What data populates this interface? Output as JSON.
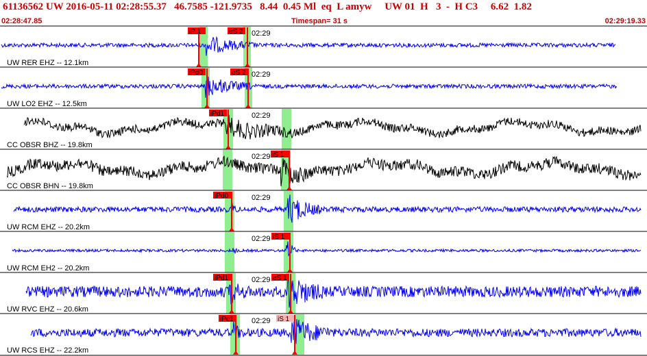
{
  "header": {
    "event_line": "61136562 UW 2016-05-11 02:28:55.37   46.7585 -121.9735   8.44  0.45 Ml  eq  L amyw     UW 01  H   3  -  H C3     6.62  1.82",
    "time_start": "02:28:47.85",
    "timespan": "Timespan=  31 s",
    "time_end": "02:29:19.33"
  },
  "colors": {
    "trace_blue": "#0000ee",
    "trace_black": "#000000",
    "pick_red": "#ff0000",
    "pick_pink": "#ffb0b0",
    "highlight_green": "#90ee90",
    "header_red": "#cc0000"
  },
  "channels": [
    {
      "label": "UW RER EHZ -- 12.1km",
      "minute_label": "02:29",
      "color": "blue",
      "picks": [
        {
          "label": "iP 1",
          "kind": "red"
        },
        {
          "label": "eS 2",
          "kind": "red"
        }
      ]
    },
    {
      "label": "UW LO2 EHZ -- 12.5km",
      "minute_label": "02:29",
      "color": "blue",
      "picks": [
        {
          "label": "iPd0",
          "kind": "red"
        },
        {
          "label": "eS 2",
          "kind": "red"
        }
      ]
    },
    {
      "label": "CC OBSR BHZ -- 19.8km",
      "minute_label": "02:29",
      "color": "black",
      "picks": [
        {
          "label": "iPd1",
          "kind": "red"
        }
      ]
    },
    {
      "label": "CC OBSR BHN -- 19.8km",
      "minute_label": "02:29",
      "color": "black",
      "picks": [
        {
          "label": "iS 1",
          "kind": "red"
        }
      ]
    },
    {
      "label": "UW RCM EHZ -- 20.2km",
      "minute_label": "02:29",
      "color": "blue",
      "picks": [
        {
          "label": "iPd0",
          "kind": "red"
        }
      ]
    },
    {
      "label": "UW RCM EH2 -- 20.2km",
      "minute_label": "02:29",
      "color": "blue",
      "picks": [
        {
          "label": "iS 1",
          "kind": "red"
        }
      ]
    },
    {
      "label": "UW RVC EHZ -- 20.6km",
      "minute_label": "02:29",
      "color": "blue",
      "picks": [
        {
          "label": "iPd1",
          "kind": "red"
        },
        {
          "label": "eS 1",
          "kind": "red"
        }
      ]
    },
    {
      "label": "UW RCS EHZ -- 22.2km",
      "minute_label": "02:29",
      "color": "blue",
      "picks": [
        {
          "label": "iPc1",
          "kind": "red"
        },
        {
          "label": "iS 1",
          "kind": "pink"
        }
      ]
    }
  ]
}
